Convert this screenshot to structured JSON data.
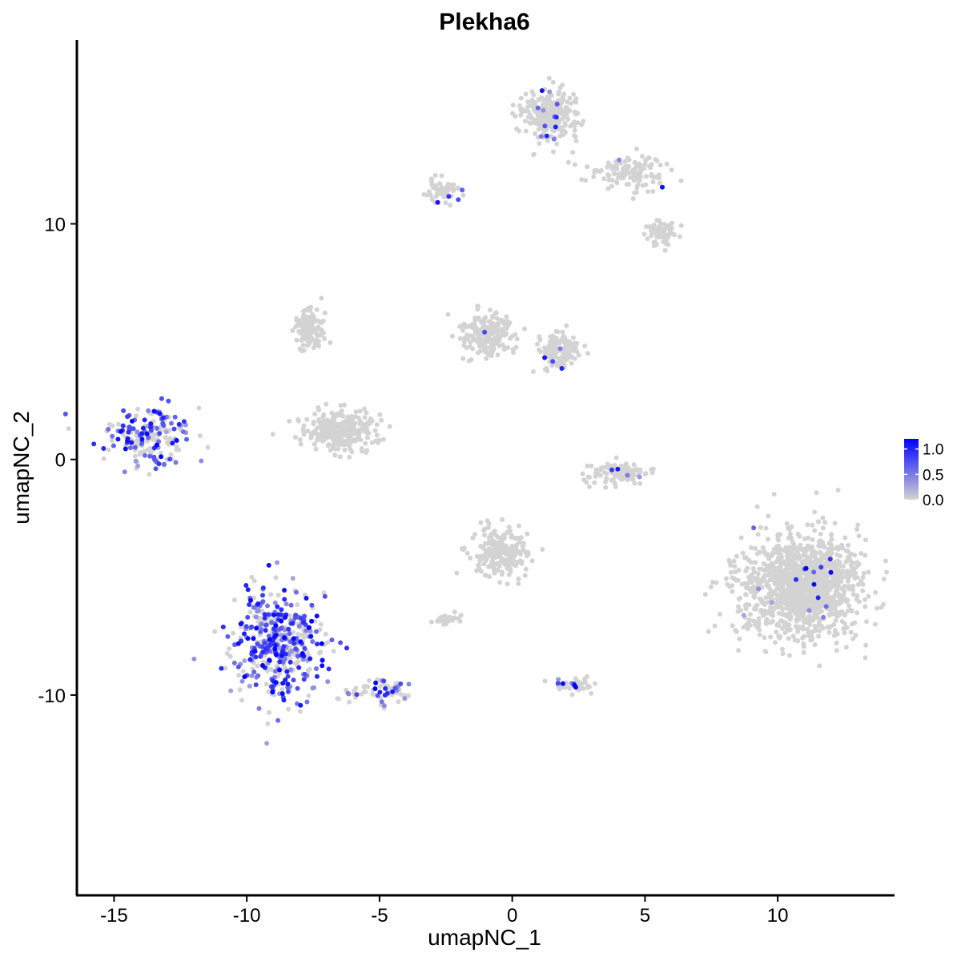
{
  "chart_data": {
    "type": "scatter",
    "title": "Plekha6",
    "xlabel": "umapNC_1",
    "ylabel": "umapNC_2",
    "xlim": [
      -16.4,
      14.4
    ],
    "ylim": [
      -18.5,
      17.8
    ],
    "xticks": [
      -15,
      -10,
      -5,
      0,
      5,
      10
    ],
    "xtick_labels": [
      "-15",
      "-10",
      "-5",
      "0",
      "5",
      "10"
    ],
    "yticks": [
      -10,
      0,
      10
    ],
    "ytick_labels": [
      "-10",
      "0",
      "10"
    ],
    "grid": false,
    "legend": {
      "placement": "right",
      "type": "colorbar",
      "range": [
        0,
        1.2
      ],
      "ticks": [
        0.0,
        0.5,
        1.0
      ],
      "tick_labels": [
        "0.0",
        "0.5",
        "1.0"
      ]
    },
    "colors": {
      "low": "#d3d3d3",
      "high": "#0000ff"
    },
    "clusters": [
      {
        "cx": -13.6,
        "cy": 1.0,
        "rx": 1.4,
        "ry": 1.2,
        "n": 200,
        "expr": 0.55
      },
      {
        "cx": -8.8,
        "cy": -7.8,
        "rx": 1.6,
        "ry": 2.0,
        "n": 450,
        "expr": 0.6
      },
      {
        "cx": -5.0,
        "cy": -9.8,
        "rx": 1.3,
        "ry": 0.5,
        "n": 70,
        "expr": 0.3
      },
      {
        "cx": 10.9,
        "cy": -5.4,
        "rx": 2.1,
        "ry": 1.9,
        "n": 1300,
        "expr": 0.01
      },
      {
        "cx": 1.4,
        "cy": 14.6,
        "rx": 0.9,
        "ry": 1.0,
        "n": 280,
        "expr": 0.03
      },
      {
        "cx": 4.4,
        "cy": 12.2,
        "rx": 1.4,
        "ry": 0.6,
        "n": 130,
        "expr": 0.02
      },
      {
        "cx": 5.6,
        "cy": 9.6,
        "rx": 0.5,
        "ry": 0.5,
        "n": 70,
        "expr": 0.0
      },
      {
        "cx": -2.6,
        "cy": 11.4,
        "rx": 0.6,
        "ry": 0.4,
        "n": 60,
        "expr": 0.03
      },
      {
        "cx": -6.5,
        "cy": 1.2,
        "rx": 1.3,
        "ry": 0.8,
        "n": 280,
        "expr": 0.0
      },
      {
        "cx": -7.6,
        "cy": 5.5,
        "rx": 0.5,
        "ry": 0.8,
        "n": 120,
        "expr": 0.0
      },
      {
        "cx": -1.0,
        "cy": 5.3,
        "rx": 0.9,
        "ry": 0.8,
        "n": 200,
        "expr": 0.01
      },
      {
        "cx": 1.8,
        "cy": 4.6,
        "rx": 0.7,
        "ry": 0.8,
        "n": 130,
        "expr": 0.04
      },
      {
        "cx": 4.0,
        "cy": -0.6,
        "rx": 1.0,
        "ry": 0.4,
        "n": 100,
        "expr": 0.03
      },
      {
        "cx": -0.5,
        "cy": -3.9,
        "rx": 0.9,
        "ry": 0.9,
        "n": 220,
        "expr": 0.0
      },
      {
        "cx": -2.4,
        "cy": -6.8,
        "rx": 0.5,
        "ry": 0.25,
        "n": 40,
        "expr": 0.0
      },
      {
        "cx": 2.3,
        "cy": -9.6,
        "rx": 0.7,
        "ry": 0.25,
        "n": 40,
        "expr": 0.2
      }
    ]
  }
}
